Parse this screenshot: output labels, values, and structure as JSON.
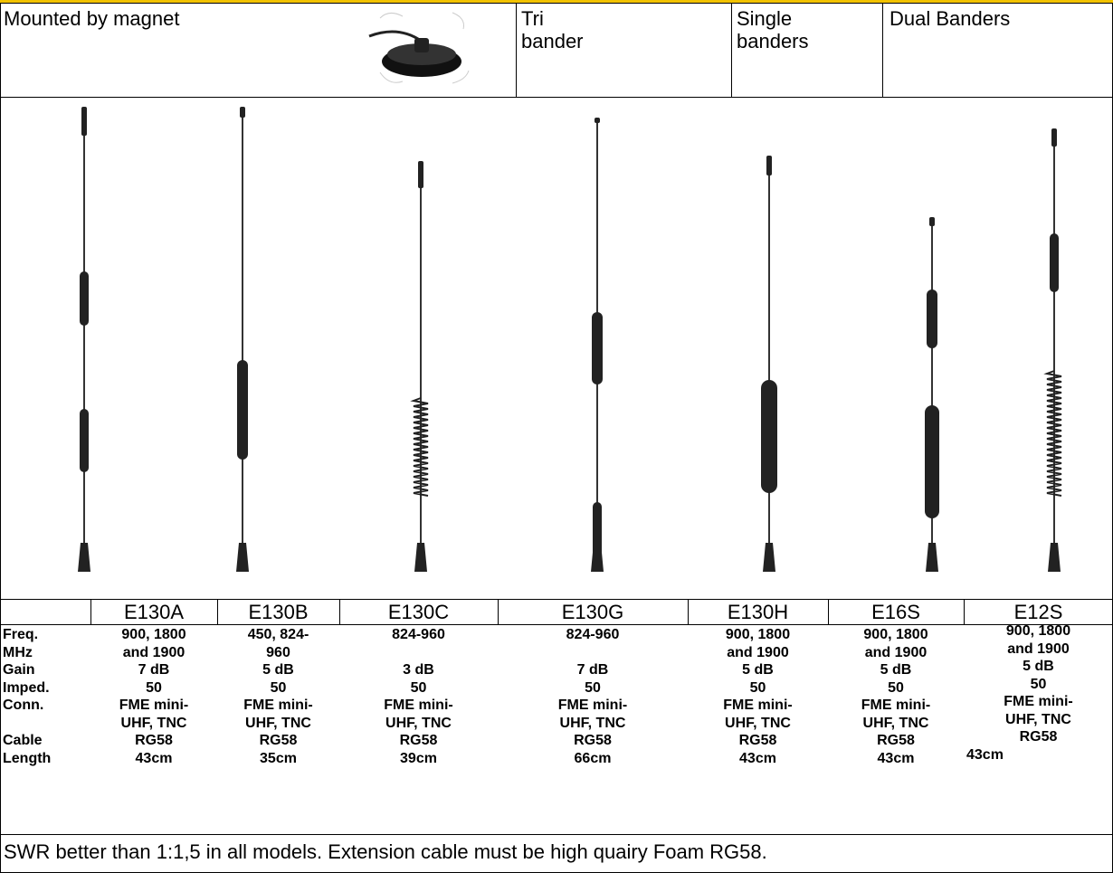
{
  "header": {
    "cells": [
      {
        "lines": [
          "Mounted by magnet"
        ]
      },
      {
        "lines": [
          "Tri",
          "bander"
        ]
      },
      {
        "lines": [
          "Single",
          "banders"
        ]
      },
      {
        "lines": [
          "Dual Banders"
        ]
      }
    ]
  },
  "specs": {
    "labels": [
      "Freq.",
      "MHz",
      "Gain",
      "Imped.",
      "Conn.",
      null,
      "Cable",
      "Length"
    ],
    "models": [
      {
        "name": "E130A",
        "lines": [
          "900, 1800",
          "and 1900",
          "7 dB",
          "50",
          "FME mini-",
          "UHF, TNC",
          "RG58",
          "43cm"
        ]
      },
      {
        "name": "E130B",
        "lines": [
          "450, 824-",
          "960",
          "5 dB",
          "50",
          "FME mini-",
          "UHF, TNC",
          "RG58",
          "35cm"
        ]
      },
      {
        "name": "E130C",
        "lines": [
          "824-960",
          null,
          "3 dB",
          "50",
          "FME mini-",
          "UHF, TNC",
          "RG58",
          "39cm"
        ]
      },
      {
        "name": "E130G",
        "lines": [
          "824-960",
          null,
          "7 dB",
          "50",
          "FME mini-",
          "UHF, TNC",
          "RG58",
          "66cm"
        ]
      },
      {
        "name": "E130H",
        "lines": [
          "900, 1800",
          "and 1900",
          "5 dB",
          "50",
          "FME mini-",
          "UHF, TNC",
          "RG58",
          "43cm"
        ]
      },
      {
        "name": "E16S",
        "lines": [
          "900, 1800",
          "and 1900",
          "5 dB",
          "50",
          "FME mini-",
          "UHF, TNC",
          "RG58",
          "43cm"
        ]
      },
      {
        "name": "E12S",
        "lines": [
          "900, 1800",
          "and 1900",
          "5 dB",
          "50",
          "FME mini-",
          "UHF, TNC",
          "RG58",
          "43cm"
        ]
      }
    ]
  },
  "footer": {
    "text": "SWR better than 1:1,5 in all models. Extension cable must be high quairy Foam RG58."
  }
}
